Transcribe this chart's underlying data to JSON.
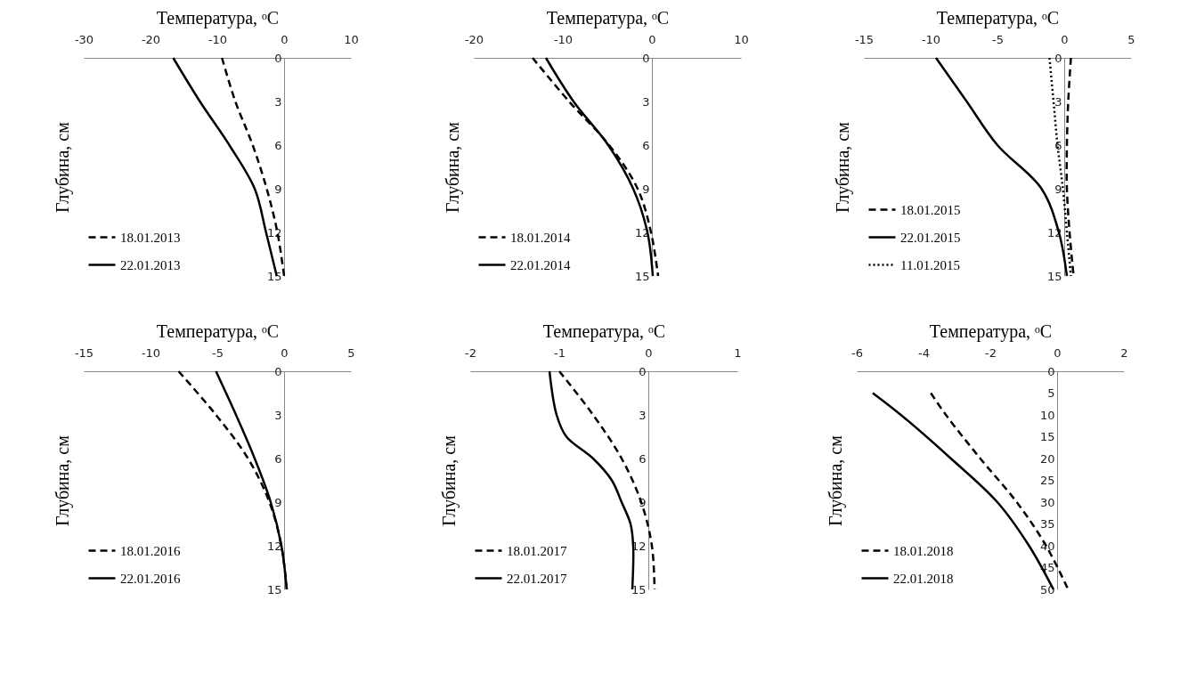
{
  "chart_data": [
    {
      "type": "line",
      "xlabel": "Температура, ᵒC",
      "ylabel": "Глубина, см",
      "xlim": [
        -30,
        10
      ],
      "xticks": [
        -30,
        -20,
        -10,
        0,
        10
      ],
      "ylim": [
        15,
        0
      ],
      "yticks": [
        0,
        3,
        6,
        9,
        12,
        15
      ],
      "legend": "bottom left",
      "series": [
        {
          "name": "18.01.2013",
          "color": "#000000",
          "line_style": "dashed",
          "x": [
            -9.3,
            -7.3,
            -4.7,
            -2.6,
            -1.0,
            0
          ],
          "values": [
            0,
            3,
            6,
            9,
            12,
            15
          ]
        },
        {
          "name": "22.01.2013",
          "color": "#000000",
          "line_style": "solid",
          "x": [
            -16.6,
            -12.6,
            -8.2,
            -4.4,
            -2.7,
            -1.1
          ],
          "values": [
            0,
            3,
            6,
            9,
            12,
            15
          ]
        }
      ]
    },
    {
      "type": "line",
      "xlabel": "Температура, ᵒC",
      "ylabel": "Глубина, см",
      "xlim": [
        -20,
        10
      ],
      "xticks": [
        -20,
        -10,
        0,
        10
      ],
      "ylim": [
        15,
        0
      ],
      "yticks": [
        0,
        3,
        6,
        9,
        12,
        15
      ],
      "legend": "bottom left",
      "series": [
        {
          "name": "18.01.2014",
          "color": "#000000",
          "line_style": "dashed",
          "x": [
            -13.4,
            -9.3,
            -4.8,
            -1.6,
            -0.1,
            0.7
          ],
          "values": [
            0,
            3,
            6,
            9,
            12,
            15
          ]
        },
        {
          "name": "22.01.2014",
          "color": "#000000",
          "line_style": "solid",
          "x": [
            -11.9,
            -8.8,
            -4.9,
            -2.1,
            -0.5,
            0.1
          ],
          "values": [
            0,
            3,
            6,
            9,
            12,
            15
          ]
        }
      ]
    },
    {
      "type": "line",
      "xlabel": "Температура, ᵒC",
      "ylabel": "Глубина, см",
      "xlim": [
        -15,
        5
      ],
      "xticks": [
        -15,
        -10,
        -5,
        0,
        5
      ],
      "ylim": [
        15,
        0
      ],
      "yticks": [
        0,
        3,
        6,
        9,
        12,
        15
      ],
      "legend": "bottom left",
      "series": [
        {
          "name": "18.01.2015",
          "color": "#000000",
          "line_style": "dashed",
          "x": [
            0.5,
            0.3,
            0.2,
            0.2,
            0.4,
            0.7
          ],
          "values": [
            0,
            3,
            6,
            9,
            12,
            15
          ]
        },
        {
          "name": "22.01.2015",
          "color": "#000000",
          "line_style": "solid",
          "x": [
            -9.6,
            -7.3,
            -5.0,
            -1.7,
            -0.4,
            0.2
          ],
          "values": [
            0,
            3,
            6,
            9,
            12,
            15
          ]
        },
        {
          "name": "11.01.2015",
          "color": "#000000",
          "line_style": "dotted",
          "x": [
            -1.1,
            -0.8,
            -0.5,
            -0.1,
            0.2,
            0.5
          ],
          "values": [
            0,
            3,
            6,
            9,
            12,
            15
          ]
        }
      ]
    },
    {
      "type": "line",
      "xlabel": "Температура, ᵒC",
      "ylabel": "Глубина, см",
      "xlim": [
        -15,
        5
      ],
      "xticks": [
        -15,
        -10,
        -5,
        0,
        5
      ],
      "ylim": [
        15,
        0
      ],
      "yticks": [
        0,
        3,
        6,
        9,
        12,
        15
      ],
      "legend": "bottom left",
      "series": [
        {
          "name": "18.01.2016",
          "color": "#000000",
          "line_style": "dashed",
          "x": [
            -7.9,
            -5.1,
            -2.7,
            -1.1,
            -0.2,
            0.2
          ],
          "values": [
            0,
            3,
            6,
            9,
            12,
            15
          ]
        },
        {
          "name": "22.01.2016",
          "color": "#000000",
          "line_style": "solid",
          "x": [
            -5.1,
            -3.6,
            -2.2,
            -1.0,
            -0.2,
            0.2
          ],
          "values": [
            0,
            3,
            6,
            9,
            12,
            15
          ]
        }
      ]
    },
    {
      "type": "line",
      "xlabel": "Температура, ᵒC",
      "ylabel": "Глубина, см",
      "xlim": [
        -2,
        1
      ],
      "xticks": [
        -2,
        -1,
        0,
        1
      ],
      "ylim": [
        15,
        0
      ],
      "yticks": [
        0,
        3,
        6,
        9,
        12,
        15
      ],
      "legend": "bottom left",
      "series": [
        {
          "name": "18.01.2017",
          "color": "#000000",
          "line_style": "dashed",
          "x": [
            -1.0,
            -0.62,
            -0.3,
            -0.08,
            0.04,
            0.07
          ],
          "values": [
            0,
            3,
            6,
            9,
            12,
            15
          ]
        },
        {
          "name": "22.01.2017",
          "color": "#000000",
          "line_style": "solid",
          "x": [
            -1.11,
            -1.03,
            -0.92,
            -0.62,
            -0.41,
            -0.3,
            -0.2,
            -0.17,
            -0.18
          ],
          "values": [
            0,
            3,
            4.5,
            6,
            7.5,
            9,
            10.5,
            12,
            15
          ]
        }
      ]
    },
    {
      "type": "line",
      "xlabel": "Температура, ᵒC",
      "ylabel": "Глубина, см",
      "xlim": [
        -6,
        2
      ],
      "xticks": [
        -6,
        -4,
        -2,
        0,
        2
      ],
      "ylim": [
        50,
        0
      ],
      "yticks": [
        0,
        5,
        10,
        15,
        20,
        25,
        30,
        35,
        40,
        45,
        50
      ],
      "legend": "bottom left",
      "series": [
        {
          "name": "18.01.2018",
          "color": "#000000",
          "line_style": "dashed",
          "x": [
            -3.78,
            -3.33,
            -2.3,
            -1.21,
            -0.33,
            0.33
          ],
          "values": [
            5,
            10,
            20,
            30,
            40,
            50
          ]
        },
        {
          "name": "22.01.2018",
          "color": "#000000",
          "line_style": "solid",
          "x": [
            -5.52,
            -4.68,
            -3.18,
            -1.79,
            -0.84,
            -0.11
          ],
          "values": [
            5,
            10,
            20,
            30,
            40,
            50
          ]
        }
      ]
    }
  ]
}
